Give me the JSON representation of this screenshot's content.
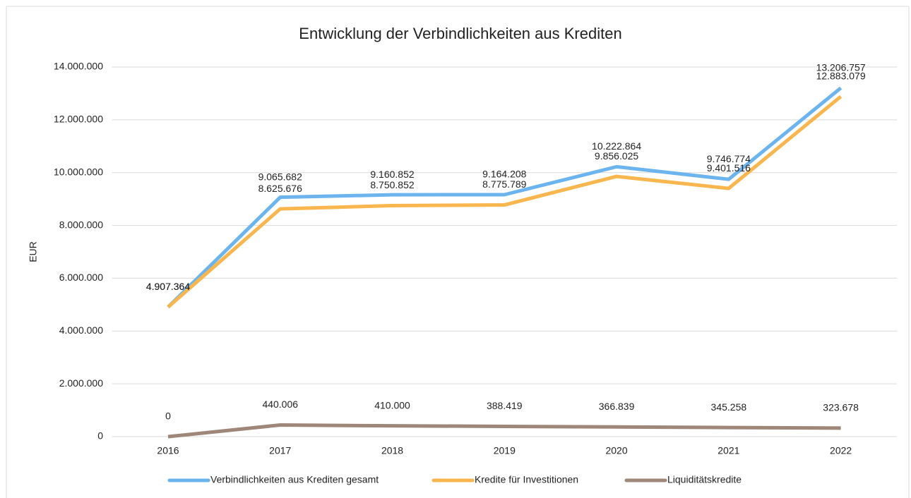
{
  "chart_data": {
    "type": "line",
    "title": "Entwicklung der Verbindlichkeiten aus Krediten",
    "y_label": "EUR",
    "categories": [
      "2016",
      "2017",
      "2018",
      "2019",
      "2020",
      "2021",
      "2022"
    ],
    "series": [
      {
        "name": "Verbindlichkeiten aus Krediten gesamt",
        "color": "#6cb4ee",
        "values": [
          4907364,
          9065682,
          9160852,
          9164208,
          10222864,
          9746774,
          13206757
        ],
        "value_labels": [
          "4.907.364",
          "9.065.682",
          "9.160.852",
          "9.164.208",
          "10.222.864",
          "9.746.774",
          "13.206.757"
        ]
      },
      {
        "name": "Kredite für Investitionen",
        "color": "#f9b64e",
        "values": [
          4907364,
          8625676,
          8750852,
          8775789,
          9856025,
          9401516,
          12883079
        ],
        "value_labels": [
          "4.907.364",
          "8.625.676",
          "8.750.852",
          "8.775.789",
          "9.856.025",
          "9.401.516",
          "12.883.079"
        ]
      },
      {
        "name": "Liquiditätskredite",
        "color": "#9e8779",
        "values": [
          0,
          440006,
          410000,
          388419,
          366839,
          345258,
          323678
        ],
        "value_labels": [
          "0",
          "440.006",
          "410.000",
          "388.419",
          "366.839",
          "345.258",
          "323.678"
        ]
      }
    ],
    "ylim": [
      0,
      14000000
    ],
    "yticks": [
      0,
      {
        "value": 2000000,
        "label": "2.000.000"
      },
      {
        "value": 4000000,
        "label": "4.000.000"
      },
      {
        "value": 6000000,
        "label": "6.000.000"
      },
      {
        "value": 8000000,
        "label": "8.000.000"
      },
      {
        "value": 10000000,
        "label": "10.000.000"
      },
      {
        "value": 12000000,
        "label": "12.000.000"
      },
      {
        "value": 14000000,
        "label": "14.000.000"
      }
    ],
    "grid": true,
    "legend": "bottom"
  }
}
